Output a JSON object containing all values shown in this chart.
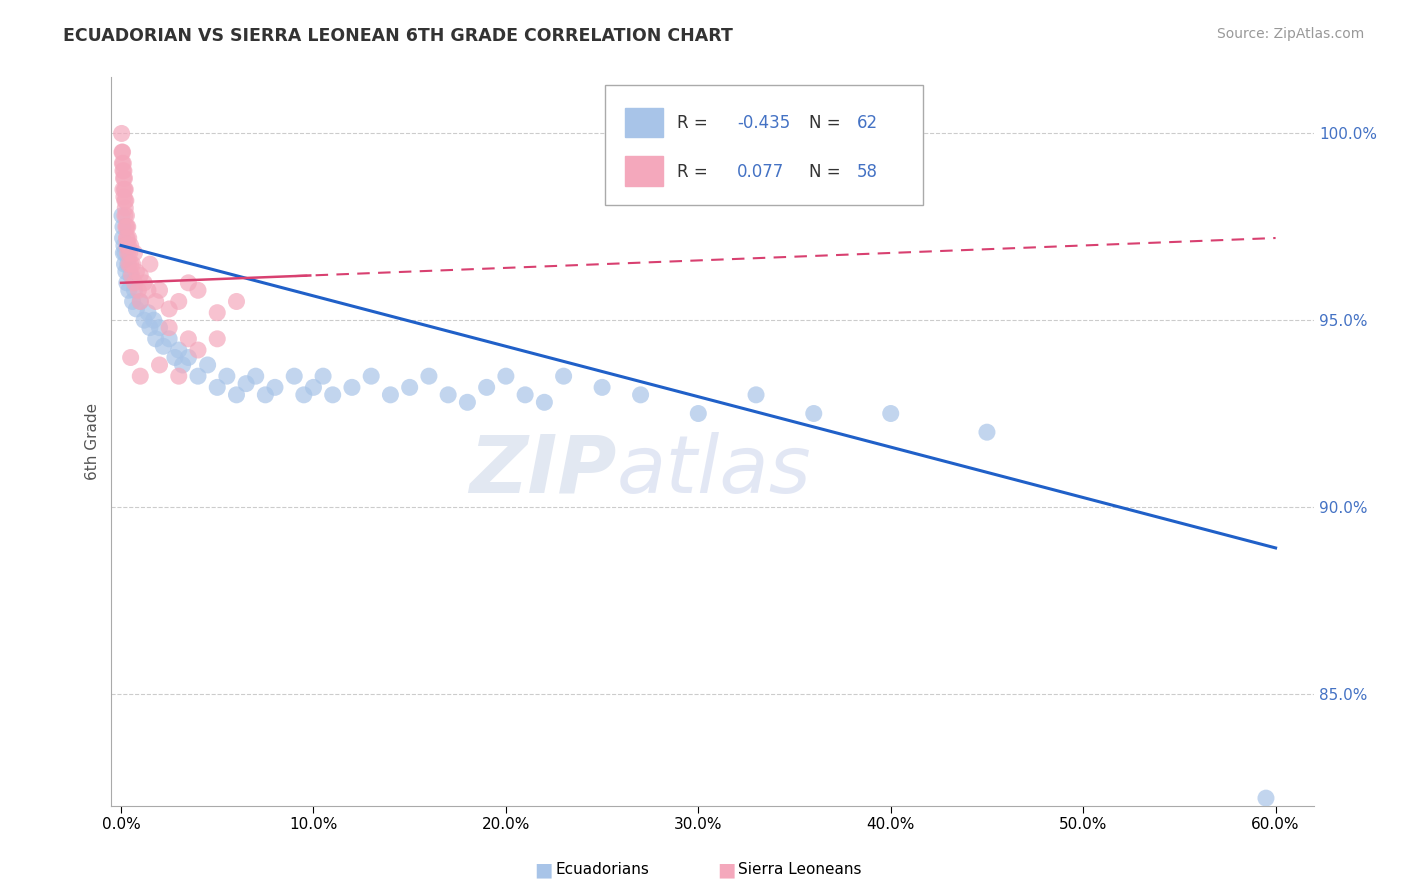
{
  "title": "ECUADORIAN VS SIERRA LEONEAN 6TH GRADE CORRELATION CHART",
  "source": "Source: ZipAtlas.com",
  "ylabel": "6th Grade",
  "ylim": [
    82.0,
    101.5
  ],
  "xlim": [
    -0.5,
    62.0
  ],
  "blue_R": -0.435,
  "blue_N": 62,
  "pink_R": 0.077,
  "pink_N": 58,
  "legend_label_blue": "Ecuadorians",
  "legend_label_pink": "Sierra Leoneans",
  "blue_color": "#a8c4e8",
  "pink_color": "#f4a8bc",
  "blue_line_color": "#2060c8",
  "pink_line_color": "#d84070",
  "blue_dots": [
    [
      0.05,
      97.8
    ],
    [
      0.08,
      97.2
    ],
    [
      0.1,
      97.5
    ],
    [
      0.12,
      96.8
    ],
    [
      0.15,
      97.0
    ],
    [
      0.18,
      96.5
    ],
    [
      0.2,
      96.8
    ],
    [
      0.25,
      96.3
    ],
    [
      0.3,
      96.0
    ],
    [
      0.35,
      96.5
    ],
    [
      0.4,
      95.8
    ],
    [
      0.5,
      96.2
    ],
    [
      0.6,
      95.5
    ],
    [
      0.7,
      95.8
    ],
    [
      0.8,
      95.3
    ],
    [
      1.0,
      95.5
    ],
    [
      1.2,
      95.0
    ],
    [
      1.4,
      95.2
    ],
    [
      1.5,
      94.8
    ],
    [
      1.7,
      95.0
    ],
    [
      1.8,
      94.5
    ],
    [
      2.0,
      94.8
    ],
    [
      2.2,
      94.3
    ],
    [
      2.5,
      94.5
    ],
    [
      2.8,
      94.0
    ],
    [
      3.0,
      94.2
    ],
    [
      3.2,
      93.8
    ],
    [
      3.5,
      94.0
    ],
    [
      4.0,
      93.5
    ],
    [
      4.5,
      93.8
    ],
    [
      5.0,
      93.2
    ],
    [
      5.5,
      93.5
    ],
    [
      6.0,
      93.0
    ],
    [
      6.5,
      93.3
    ],
    [
      7.0,
      93.5
    ],
    [
      7.5,
      93.0
    ],
    [
      8.0,
      93.2
    ],
    [
      9.0,
      93.5
    ],
    [
      9.5,
      93.0
    ],
    [
      10.0,
      93.2
    ],
    [
      10.5,
      93.5
    ],
    [
      11.0,
      93.0
    ],
    [
      12.0,
      93.2
    ],
    [
      13.0,
      93.5
    ],
    [
      14.0,
      93.0
    ],
    [
      15.0,
      93.2
    ],
    [
      16.0,
      93.5
    ],
    [
      17.0,
      93.0
    ],
    [
      18.0,
      92.8
    ],
    [
      19.0,
      93.2
    ],
    [
      20.0,
      93.5
    ],
    [
      21.0,
      93.0
    ],
    [
      22.0,
      92.8
    ],
    [
      23.0,
      93.5
    ],
    [
      25.0,
      93.2
    ],
    [
      27.0,
      93.0
    ],
    [
      30.0,
      92.5
    ],
    [
      33.0,
      93.0
    ],
    [
      36.0,
      92.5
    ],
    [
      40.0,
      92.5
    ],
    [
      45.0,
      92.0
    ],
    [
      59.5,
      82.2
    ]
  ],
  "pink_dots": [
    [
      0.03,
      100.0
    ],
    [
      0.05,
      99.5
    ],
    [
      0.07,
      99.2
    ],
    [
      0.08,
      99.5
    ],
    [
      0.1,
      99.0
    ],
    [
      0.1,
      98.5
    ],
    [
      0.12,
      99.2
    ],
    [
      0.13,
      98.8
    ],
    [
      0.15,
      99.0
    ],
    [
      0.15,
      98.3
    ],
    [
      0.18,
      98.8
    ],
    [
      0.18,
      98.5
    ],
    [
      0.2,
      98.2
    ],
    [
      0.2,
      97.8
    ],
    [
      0.22,
      98.5
    ],
    [
      0.22,
      98.0
    ],
    [
      0.25,
      97.5
    ],
    [
      0.25,
      98.2
    ],
    [
      0.28,
      97.8
    ],
    [
      0.28,
      97.2
    ],
    [
      0.3,
      97.5
    ],
    [
      0.3,
      97.0
    ],
    [
      0.32,
      97.2
    ],
    [
      0.35,
      96.8
    ],
    [
      0.35,
      97.5
    ],
    [
      0.38,
      97.0
    ],
    [
      0.4,
      96.5
    ],
    [
      0.4,
      97.2
    ],
    [
      0.45,
      96.8
    ],
    [
      0.5,
      96.5
    ],
    [
      0.5,
      97.0
    ],
    [
      0.55,
      96.2
    ],
    [
      0.6,
      96.5
    ],
    [
      0.7,
      96.8
    ],
    [
      0.7,
      96.0
    ],
    [
      0.8,
      96.3
    ],
    [
      0.9,
      95.8
    ],
    [
      1.0,
      96.2
    ],
    [
      1.0,
      95.5
    ],
    [
      1.2,
      96.0
    ],
    [
      1.4,
      95.8
    ],
    [
      1.5,
      96.5
    ],
    [
      1.8,
      95.5
    ],
    [
      2.0,
      95.8
    ],
    [
      2.5,
      95.3
    ],
    [
      3.0,
      95.5
    ],
    [
      3.5,
      96.0
    ],
    [
      4.0,
      95.8
    ],
    [
      5.0,
      95.2
    ],
    [
      6.0,
      95.5
    ],
    [
      0.5,
      94.0
    ],
    [
      1.0,
      93.5
    ],
    [
      2.0,
      93.8
    ],
    [
      3.0,
      93.5
    ],
    [
      4.0,
      94.2
    ],
    [
      5.0,
      94.5
    ],
    [
      2.5,
      94.8
    ],
    [
      3.5,
      94.5
    ]
  ]
}
